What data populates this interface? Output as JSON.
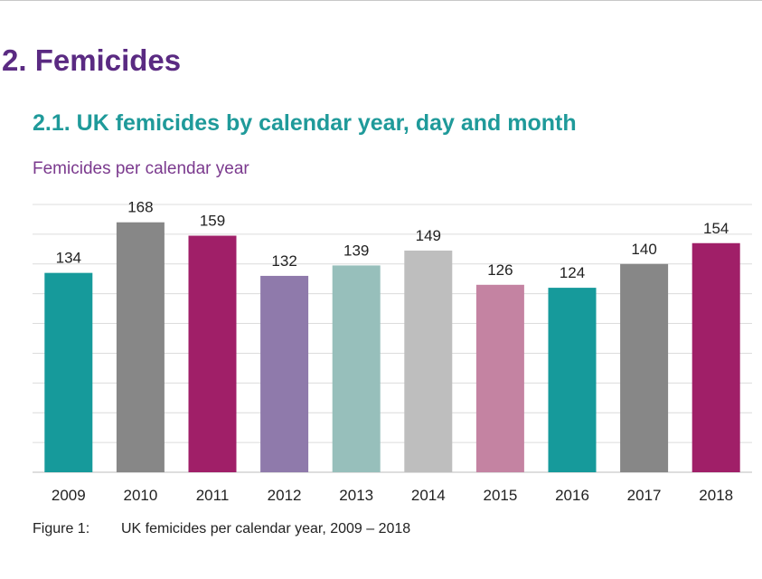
{
  "section": {
    "title": "2. Femicides"
  },
  "subsection": {
    "title": "2.1. UK femicides by calendar year, day and month"
  },
  "chart_data": {
    "type": "bar",
    "title": "Femicides per calendar year",
    "categories": [
      "2009",
      "2010",
      "2011",
      "2012",
      "2013",
      "2014",
      "2015",
      "2016",
      "2017",
      "2018"
    ],
    "values": [
      134,
      168,
      159,
      132,
      139,
      149,
      126,
      124,
      140,
      154
    ],
    "colors": [
      "#169a9b",
      "#878787",
      "#a01f68",
      "#8f7aab",
      "#97bfbb",
      "#bebebe",
      "#c483a2",
      "#169a9b",
      "#878787",
      "#a01f68"
    ],
    "ylim": [
      0,
      180
    ],
    "grid": true,
    "data_labels": true,
    "xlabel": "",
    "ylabel": ""
  },
  "figure": {
    "number": "Figure 1:",
    "caption": "UK femicides per calendar year, 2009 – 2018"
  }
}
